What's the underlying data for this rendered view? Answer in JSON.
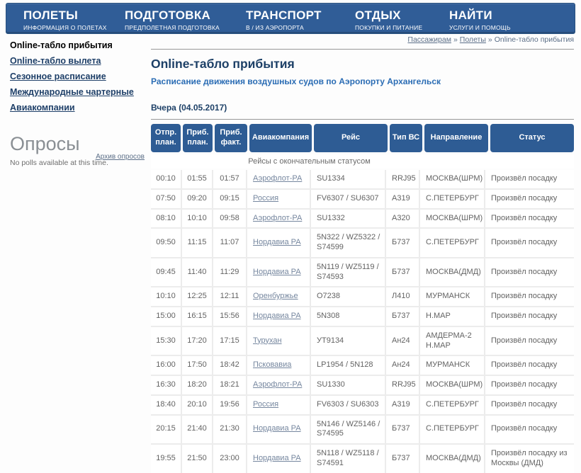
{
  "nav": {
    "items": [
      {
        "title": "ПОЛЕТЫ",
        "subtitle": "ИНФОРМАЦИЯ О ПОЛЕТАХ"
      },
      {
        "title": "ПОДГОТОВКА",
        "subtitle": "ПРЕДПОЛЕТНАЯ ПОДГОТОВКА"
      },
      {
        "title": "ТРАНСПОРТ",
        "subtitle": "В / ИЗ АЭРОПОРТА"
      },
      {
        "title": "ОТДЫХ",
        "subtitle": "ПОКУПКИ И ПИТАНИЕ"
      },
      {
        "title": "НАЙТИ",
        "subtitle": "УСЛУГИ И ПОМОЩЬ"
      }
    ]
  },
  "sidebar": {
    "items": [
      {
        "label": "Online-табло прибытия",
        "current": true
      },
      {
        "label": "Online-табло вылета",
        "current": false
      },
      {
        "label": "Сезонное расписание",
        "current": false
      },
      {
        "label": "Международные чартерные",
        "current": false
      },
      {
        "label": "Авиакомпании",
        "current": false
      }
    ],
    "polls": {
      "title": "Опросы",
      "archive_link": "Архив опросов",
      "empty_text": "No polls available at this time."
    }
  },
  "breadcrumb": {
    "separator": "»",
    "items": [
      "Пассажирам",
      "Полеты",
      "Online-табло прибытия"
    ]
  },
  "main": {
    "title": "Online-табло прибытия",
    "subtitle": "Расписание движения воздушных судов по Аэропорту Архангельск",
    "date_label": "Вчера (04.05.2017)"
  },
  "table": {
    "columns": [
      "Отпр. план.",
      "Приб. план.",
      "Приб. факт.",
      "Авиакомпания",
      "Рейс",
      "Тип ВС",
      "Направление",
      "Статус"
    ],
    "section_caption": "Рейсы с окончательным статусом",
    "rows": [
      [
        "00:10",
        "01:55",
        "01:57",
        "Аэрофлот-РА",
        "SU1334",
        "RRJ95",
        "МОСКВА(ШРМ)",
        "Произвёл посадку"
      ],
      [
        "07:50",
        "09:20",
        "09:15",
        "Россия",
        "FV6307 / SU6307",
        "A319",
        "С.ПЕТЕРБУРГ",
        "Произвёл посадку"
      ],
      [
        "08:10",
        "10:10",
        "09:58",
        "Аэрофлот-РА",
        "SU1332",
        "A320",
        "МОСКВА(ШРМ)",
        "Произвёл посадку"
      ],
      [
        "09:50",
        "11:15",
        "11:07",
        "Нордавиа РА",
        "5N322 / WZ5322 / S74599",
        "Б737",
        "С.ПЕТЕРБУРГ",
        "Произвёл посадку"
      ],
      [
        "09:45",
        "11:40",
        "11:29",
        "Нордавиа РА",
        "5N119 / WZ5119 / S74593",
        "Б737",
        "МОСКВА(ДМД)",
        "Произвёл посадку"
      ],
      [
        "10:10",
        "12:25",
        "12:11",
        "Оренбуржье",
        "О7238",
        "Л410",
        "МУРМАНСК",
        "Произвёл посадку"
      ],
      [
        "15:00",
        "16:15",
        "15:56",
        "Нордавиа РА",
        "5N308",
        "Б737",
        "Н.МАР",
        "Произвёл посадку"
      ],
      [
        "15:30",
        "17:20",
        "17:15",
        "Турухан",
        "УТ9134",
        "Ан24",
        "АМДЕРМА-2 Н.МАР",
        "Произвёл посадку"
      ],
      [
        "16:00",
        "17:50",
        "18:42",
        "Псковавиа",
        "LP1954 / 5N128",
        "Ан24",
        "МУРМАНСК",
        "Произвёл посадку"
      ],
      [
        "16:30",
        "18:20",
        "18:21",
        "Аэрофлот-РА",
        "SU1330",
        "RRJ95",
        "МОСКВА(ШРМ)",
        "Произвёл посадку"
      ],
      [
        "18:40",
        "20:10",
        "19:56",
        "Россия",
        "FV6303 / SU6303",
        "A319",
        "С.ПЕТЕРБУРГ",
        "Произвёл посадку"
      ],
      [
        "20:15",
        "21:40",
        "21:30",
        "Нордавиа РА",
        "5N146 / WZ5146 / S74595",
        "Б737",
        "С.ПЕТЕРБУРГ",
        "Произвёл посадку"
      ],
      [
        "19:55",
        "21:50",
        "23:00",
        "Нордавиа РА",
        "5N118 / WZ5118 / S74591",
        "Б737",
        "МОСКВА(ДМД)",
        "Произвёл посадку из Москвы (ДМД)"
      ]
    ]
  },
  "colors": {
    "nav_blue": "#305d97",
    "header_blue": "#2e5c94",
    "title_navy": "#1d4067",
    "subtitle_blue": "#2a6cb4",
    "link_gray_blue": "#76879f"
  }
}
